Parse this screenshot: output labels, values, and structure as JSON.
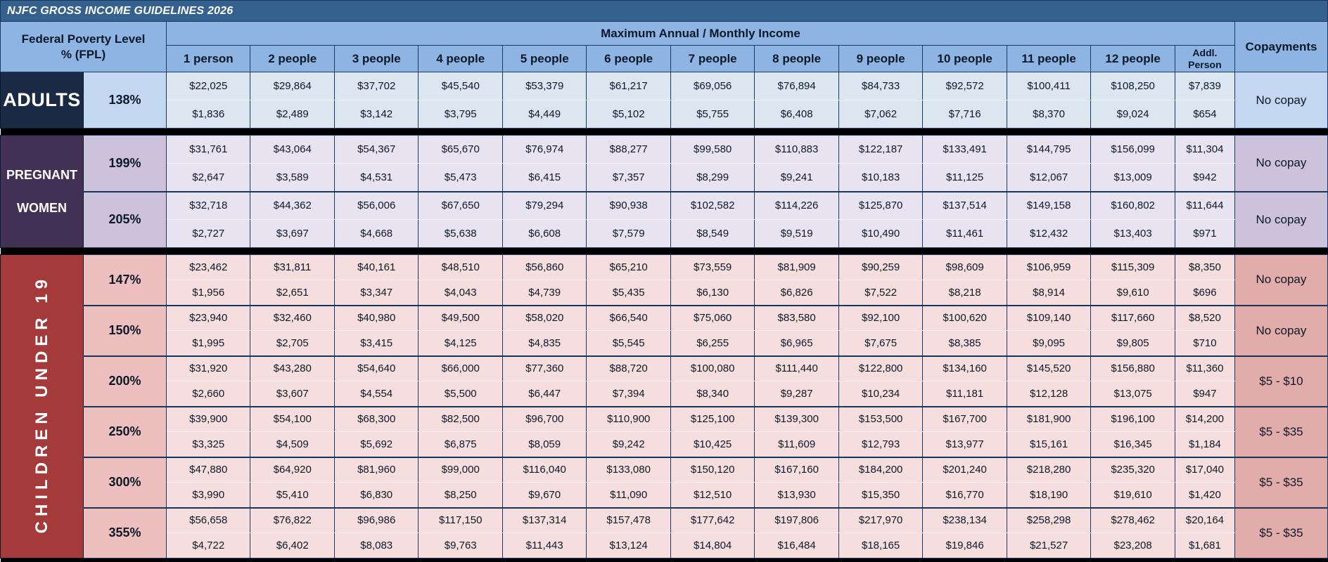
{
  "title": "NJFC GROSS INCOME GUIDELINES 2026",
  "header": {
    "fpl_label": "Federal Poverty Level\n% (FPL)",
    "income_label": "Maximum Annual / Monthly Income",
    "copay_label": "Copayments",
    "columns": [
      "1 person",
      "2 people",
      "3 people",
      "4 people",
      "5 people",
      "6 people",
      "7 people",
      "8 people",
      "9 people",
      "10 people",
      "11 people",
      "12 people",
      "Addl.\nPerson"
    ]
  },
  "colors": {
    "title_bar": "#35618E",
    "header_blue": "#8DB4E2",
    "adults_label": "#1A2A45",
    "pregnant_label": "#413155",
    "children_label": "#A43A3A",
    "grid_border": "#1B3A63",
    "section_separator": "#000000"
  },
  "sections": [
    {
      "key": "adults",
      "name": "ADULTS",
      "groups": [
        {
          "fpl": "138%",
          "annual": [
            "$22,025",
            "$29,864",
            "$37,702",
            "$45,540",
            "$53,379",
            "$61,217",
            "$69,056",
            "$76,894",
            "$84,733",
            "$92,572",
            "$100,411",
            "$108,250",
            "$7,839"
          ],
          "monthly": [
            "$1,836",
            "$2,489",
            "$3,142",
            "$3,795",
            "$4,449",
            "$5,102",
            "$5,755",
            "$6,408",
            "$7,062",
            "$7,716",
            "$8,370",
            "$9,024",
            "$654"
          ],
          "copay": "No copay"
        }
      ]
    },
    {
      "key": "pregnant",
      "name": "PREGNANT\nWOMEN",
      "groups": [
        {
          "fpl": "199%",
          "annual": [
            "$31,761",
            "$43,064",
            "$54,367",
            "$65,670",
            "$76,974",
            "$88,277",
            "$99,580",
            "$110,883",
            "$122,187",
            "$133,491",
            "$144,795",
            "$156,099",
            "$11,304"
          ],
          "monthly": [
            "$2,647",
            "$3,589",
            "$4,531",
            "$5,473",
            "$6,415",
            "$7,357",
            "$8,299",
            "$9,241",
            "$10,183",
            "$11,125",
            "$12,067",
            "$13,009",
            "$942"
          ],
          "copay": "No copay"
        },
        {
          "fpl": "205%",
          "annual": [
            "$32,718",
            "$44,362",
            "$56,006",
            "$67,650",
            "$79,294",
            "$90,938",
            "$102,582",
            "$114,226",
            "$125,870",
            "$137,514",
            "$149,158",
            "$160,802",
            "$11,644"
          ],
          "monthly": [
            "$2,727",
            "$3,697",
            "$4,668",
            "$5,638",
            "$6,608",
            "$7,579",
            "$8,549",
            "$9,519",
            "$10,490",
            "$11,461",
            "$12,432",
            "$13,403",
            "$971"
          ],
          "copay": "No copay"
        }
      ]
    },
    {
      "key": "children",
      "name": "CHILDREN UNDER 19",
      "groups": [
        {
          "fpl": "147%",
          "annual": [
            "$23,462",
            "$31,811",
            "$40,161",
            "$48,510",
            "$56,860",
            "$65,210",
            "$73,559",
            "$81,909",
            "$90,259",
            "$98,609",
            "$106,959",
            "$115,309",
            "$8,350"
          ],
          "monthly": [
            "$1,956",
            "$2,651",
            "$3,347",
            "$4,043",
            "$4,739",
            "$5,435",
            "$6,130",
            "$6,826",
            "$7,522",
            "$8,218",
            "$8,914",
            "$9,610",
            "$696"
          ],
          "copay": "No copay"
        },
        {
          "fpl": "150%",
          "annual": [
            "$23,940",
            "$32,460",
            "$40,980",
            "$49,500",
            "$58,020",
            "$66,540",
            "$75,060",
            "$83,580",
            "$92,100",
            "$100,620",
            "$109,140",
            "$117,660",
            "$8,520"
          ],
          "monthly": [
            "$1,995",
            "$2,705",
            "$3,415",
            "$4,125",
            "$4,835",
            "$5,545",
            "$6,255",
            "$6,965",
            "$7,675",
            "$8,385",
            "$9,095",
            "$9,805",
            "$710"
          ],
          "copay": "No copay"
        },
        {
          "fpl": "200%",
          "annual": [
            "$31,920",
            "$43,280",
            "$54,640",
            "$66,000",
            "$77,360",
            "$88,720",
            "$100,080",
            "$111,440",
            "$122,800",
            "$134,160",
            "$145,520",
            "$156,880",
            "$11,360"
          ],
          "monthly": [
            "$2,660",
            "$3,607",
            "$4,554",
            "$5,500",
            "$6,447",
            "$7,394",
            "$8,340",
            "$9,287",
            "$10,234",
            "$11,181",
            "$12,128",
            "$13,075",
            "$947"
          ],
          "copay": "$5 - $10"
        },
        {
          "fpl": "250%",
          "annual": [
            "$39,900",
            "$54,100",
            "$68,300",
            "$82,500",
            "$96,700",
            "$110,900",
            "$125,100",
            "$139,300",
            "$153,500",
            "$167,700",
            "$181,900",
            "$196,100",
            "$14,200"
          ],
          "monthly": [
            "$3,325",
            "$4,509",
            "$5,692",
            "$6,875",
            "$8,059",
            "$9,242",
            "$10,425",
            "$11,609",
            "$12,793",
            "$13,977",
            "$15,161",
            "$16,345",
            "$1,184"
          ],
          "copay": "$5 - $35"
        },
        {
          "fpl": "300%",
          "annual": [
            "$47,880",
            "$64,920",
            "$81,960",
            "$99,000",
            "$116,040",
            "$133,080",
            "$150,120",
            "$167,160",
            "$184,200",
            "$201,240",
            "$218,280",
            "$235,320",
            "$17,040"
          ],
          "monthly": [
            "$3,990",
            "$5,410",
            "$6,830",
            "$8,250",
            "$9,670",
            "$11,090",
            "$12,510",
            "$13,930",
            "$15,350",
            "$16,770",
            "$18,190",
            "$19,610",
            "$1,420"
          ],
          "copay": "$5 - $35"
        },
        {
          "fpl": "355%",
          "annual": [
            "$56,658",
            "$76,822",
            "$96,986",
            "$117,150",
            "$137,314",
            "$157,478",
            "$177,642",
            "$197,806",
            "$217,970",
            "$238,134",
            "$258,298",
            "$278,462",
            "$20,164"
          ],
          "monthly": [
            "$4,722",
            "$6,402",
            "$8,083",
            "$9,763",
            "$11,443",
            "$13,124",
            "$14,804",
            "$16,484",
            "$18,165",
            "$19,846",
            "$21,527",
            "$23,208",
            "$1,681"
          ],
          "copay": "$5 - $35"
        }
      ]
    }
  ]
}
